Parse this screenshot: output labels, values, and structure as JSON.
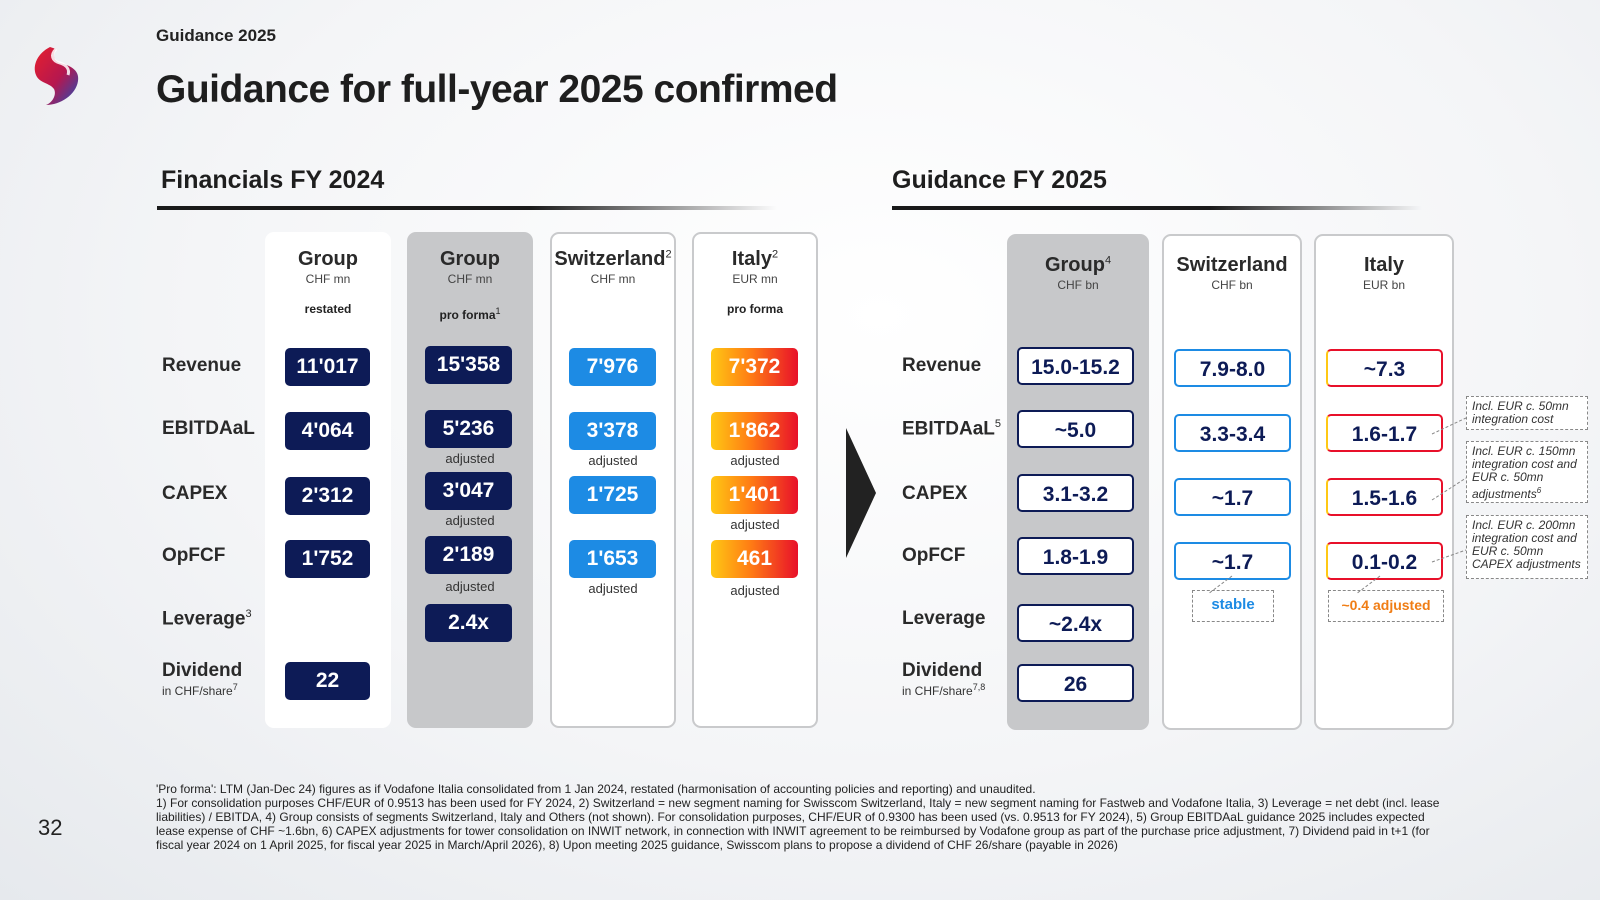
{
  "header": {
    "breadcrumb": "Guidance 2025",
    "title": "Guidance for full-year 2025 confirmed"
  },
  "colors": {
    "navy": "#0d1b56",
    "blue": "#1d8be4",
    "italy_gradient": [
      "#ffc814",
      "#ff7d14",
      "#e8102a"
    ],
    "grey_column": "#c7c8ca"
  },
  "financials": {
    "section_title": "Financials FY 2024",
    "row_labels": {
      "revenue": "Revenue",
      "ebitdaal": "EBITDAaL",
      "capex": "CAPEX",
      "opfcf": "OpFCF",
      "leverage": "Leverage",
      "leverage_sup": "3",
      "dividend": "Dividend",
      "dividend_sub": "in CHF/share",
      "dividend_sup": "7"
    },
    "columns": [
      {
        "header": "Group",
        "unit": "CHF mn",
        "note": "restated",
        "values": {
          "revenue": "11'017",
          "ebitdaal": "4'064",
          "capex": "2'312",
          "opfcf": "1'752",
          "dividend": "22"
        }
      },
      {
        "header": "Group",
        "unit": "CHF mn",
        "note": "pro forma",
        "note_sup": "1",
        "values": {
          "revenue": "15'358",
          "ebitdaal": "5'236",
          "capex": "3'047",
          "opfcf": "2'189",
          "leverage": "2.4x"
        },
        "sublabels": {
          "ebitdaal": "adjusted",
          "capex": "adjusted",
          "opfcf": "adjusted"
        }
      },
      {
        "header": "Switzerland",
        "header_sup": "2",
        "unit": "CHF mn",
        "values": {
          "revenue": "7'976",
          "ebitdaal": "3'378",
          "capex": "1'725",
          "opfcf": "1'653"
        },
        "sublabels": {
          "ebitdaal": "adjusted",
          "opfcf": "adjusted"
        }
      },
      {
        "header": "Italy",
        "header_sup": "2",
        "unit": "EUR mn",
        "note": "pro forma",
        "values": {
          "revenue": "7'372",
          "ebitdaal": "1'862",
          "capex": "1'401",
          "opfcf": "461"
        },
        "sublabels": {
          "ebitdaal": "adjusted",
          "capex": "adjusted",
          "opfcf": "adjusted"
        }
      }
    ]
  },
  "guidance": {
    "section_title": "Guidance FY 2025",
    "row_labels": {
      "revenue": "Revenue",
      "ebitdaal": "EBITDAaL",
      "ebitdaal_sup": "5",
      "capex": "CAPEX",
      "opfcf": "OpFCF",
      "leverage": "Leverage",
      "dividend": "Dividend",
      "dividend_sub": "in CHF/share",
      "dividend_sup": "7,8"
    },
    "columns": [
      {
        "header": "Group",
        "header_sup": "4",
        "unit": "CHF bn",
        "values": {
          "revenue": "15.0-15.2",
          "ebitdaal": "~5.0",
          "capex": "3.1-3.2",
          "opfcf": "1.8-1.9",
          "leverage": "~2.4x",
          "dividend": "26"
        }
      },
      {
        "header": "Switzerland",
        "unit": "CHF bn",
        "values": {
          "revenue": "7.9-8.0",
          "ebitdaal": "3.3-3.4",
          "capex": "~1.7",
          "opfcf": "~1.7"
        },
        "tag": "stable"
      },
      {
        "header": "Italy",
        "unit": "EUR bn",
        "values": {
          "revenue": "~7.3",
          "ebitdaal": "1.6-1.7",
          "capex": "1.5-1.6",
          "opfcf": "0.1-0.2"
        },
        "tag": "~0.4 adjusted"
      }
    ],
    "callouts": {
      "ebitdaal": "Incl. EUR c. 50mn integration cost",
      "capex": "Incl. EUR c. 150mn integration cost and EUR c. 50mn adjustments",
      "capex_sup": "6",
      "opfcf": "Incl. EUR c. 200mn integration cost and EUR c. 50mn CAPEX adjustments"
    }
  },
  "footnotes": {
    "line1": "'Pro forma': LTM (Jan-Dec 24) figures as if Vodafone Italia consolidated from 1 Jan 2024, restated (harmonisation of accounting policies and reporting) and unaudited.",
    "line2": "1) For consolidation purposes CHF/EUR of 0.9513 has been used for FY 2024, 2) Switzerland = new segment naming for Swisscom Switzerland, Italy = new segment naming for Fastweb and Vodafone Italia, 3) Leverage = net debt (incl. lease liabilities) / EBITDA, 4) Group consists of segments Switzerland, Italy and Others (not shown). For consolidation purposes, CHF/EUR of 0.9300 has been used (vs. 0.9513 for FY 2024), 5) Group EBITDAaL guidance 2025 includes expected lease expense of CHF ~1.6bn, 6) CAPEX adjustments for tower consolidation on INWIT network, in connection with INWIT agreement to be reimbursed by Vodafone group as part of the purchase price adjustment, 7) Dividend paid in t+1 (for fiscal year 2024 on 1 April 2025, for fiscal year 2025 in March/April 2026), 8) Upon meeting 2025 guidance, Swisscom plans to propose a dividend of CHF 26/share (payable in 2026)"
  },
  "page_number": "32"
}
